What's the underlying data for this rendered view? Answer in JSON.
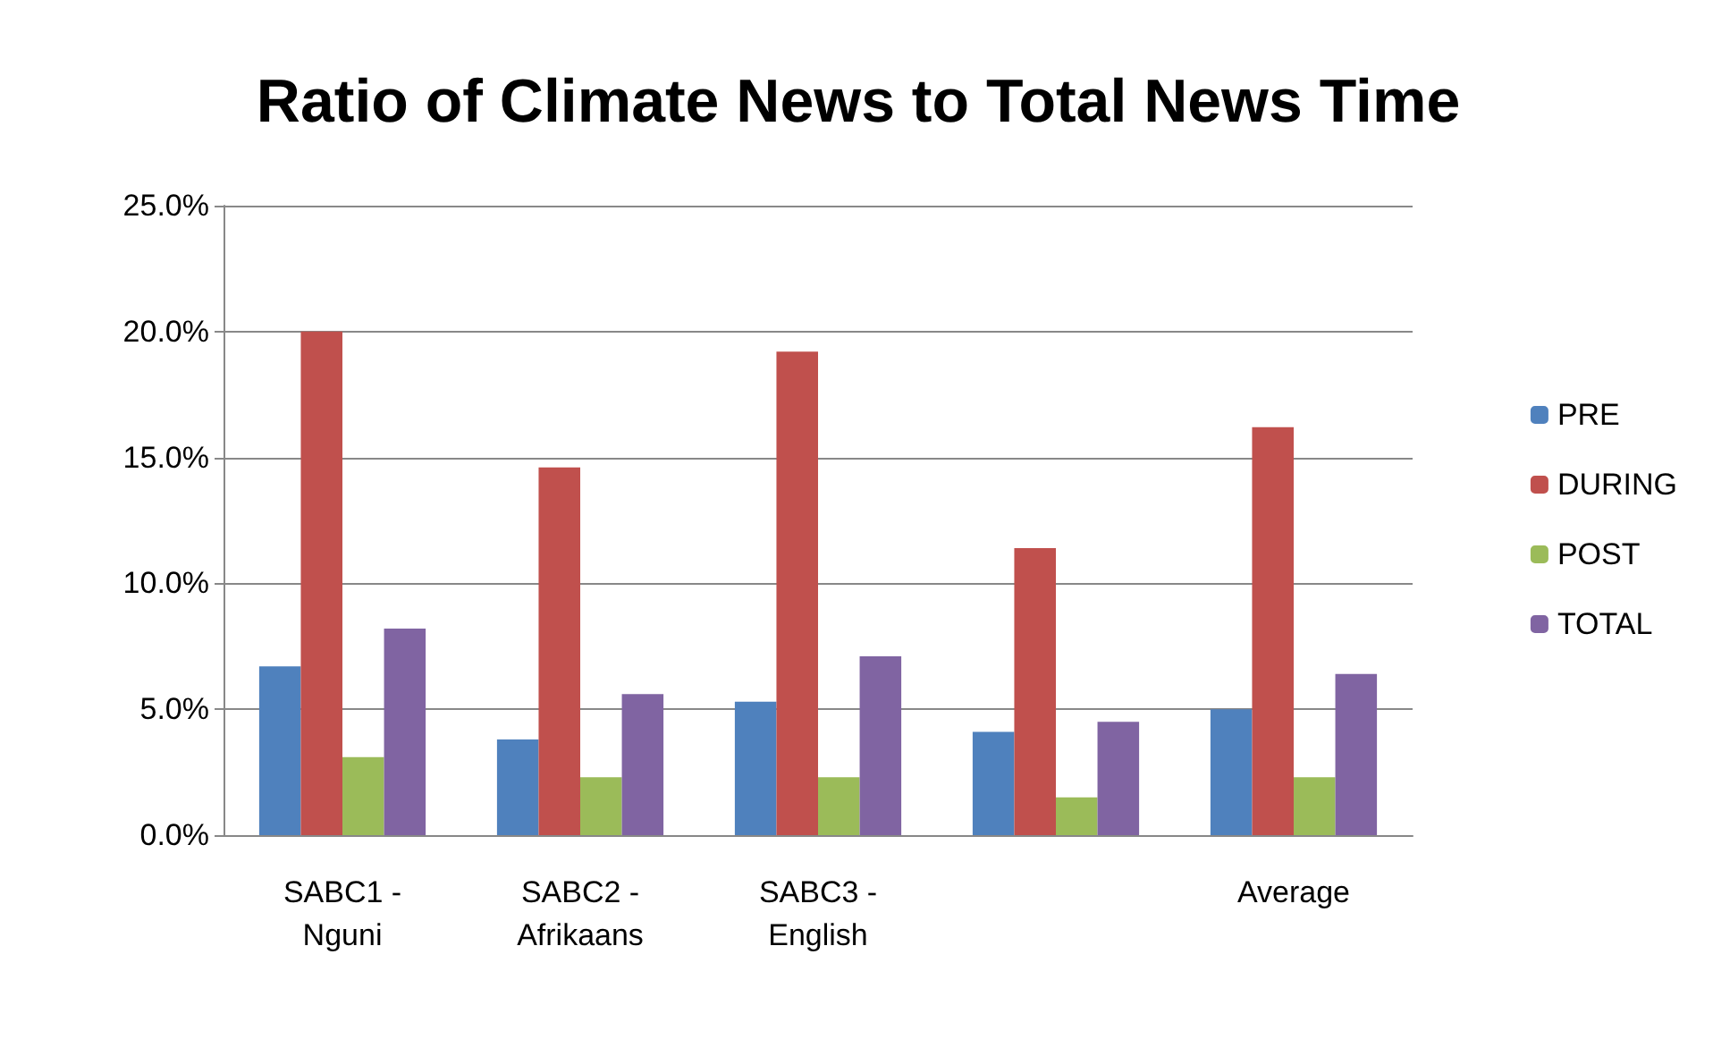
{
  "chart_data": {
    "type": "bar",
    "title": "Ratio of Climate News to Total News Time",
    "categories": [
      "SABC1 -\nNguni",
      "SABC2 -\nAfrikaans",
      "SABC3 -\nEnglish",
      null,
      "Average"
    ],
    "series": [
      {
        "name": "PRE",
        "color": "#4f81bd",
        "values": [
          6.7,
          3.8,
          5.3,
          4.1,
          5.0
        ]
      },
      {
        "name": "DURING",
        "color": "#c0504d",
        "values": [
          20.0,
          14.6,
          19.2,
          11.4,
          16.2
        ]
      },
      {
        "name": "POST",
        "color": "#9bbb59",
        "values": [
          3.1,
          2.3,
          2.3,
          1.5,
          2.3
        ]
      },
      {
        "name": "TOTAL",
        "color": "#8064a2",
        "values": [
          8.2,
          5.6,
          7.1,
          4.5,
          6.4
        ]
      }
    ],
    "ylim": [
      0,
      25
    ],
    "yticks": [
      {
        "value": 0,
        "label": "0.0%"
      },
      {
        "value": 5,
        "label": "5.0%"
      },
      {
        "value": 10,
        "label": "10.0%"
      },
      {
        "value": 15,
        "label": "15.0%"
      },
      {
        "value": 20,
        "label": "20.0%"
      },
      {
        "value": 25,
        "label": "25.0%"
      }
    ],
    "grid": "y",
    "legend": "right"
  }
}
